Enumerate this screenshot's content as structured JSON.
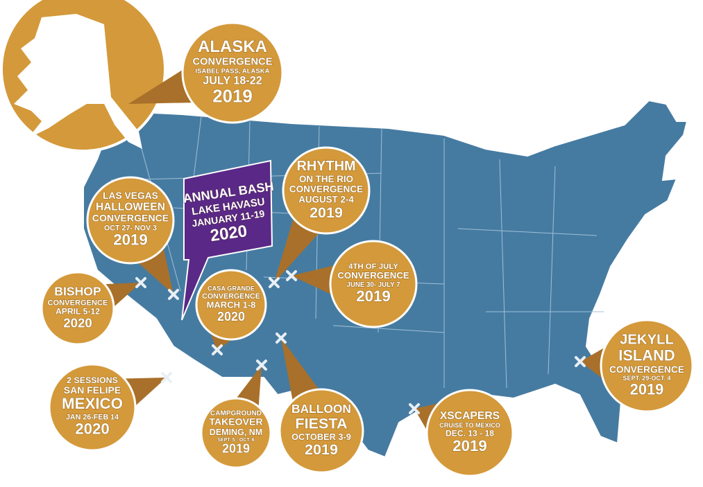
{
  "banner": {
    "lines": [
      "ANNUAL BASH",
      "LAKE HAVASU",
      "JANUARY 11-19",
      "2020"
    ]
  },
  "events": [
    {
      "lines": [
        "ALASKA",
        "CONVERGENCE",
        "ISABEL PASS, ALASKA",
        "JULY 18-22",
        "2019"
      ]
    },
    {
      "lines": [
        "RHYTHM",
        "ON THE RIO",
        "CONVERGENCE",
        "AUGUST 2-4",
        "2019"
      ]
    },
    {
      "lines": [
        "LAS VEGAS",
        "HALLOWEEN",
        "CONVERGENCE",
        "OCT 27- NOV 3",
        "2019"
      ]
    },
    {
      "lines": [
        "4TH OF JULY",
        "CONVERGENCE",
        "JUNE 30- JULY 7",
        "2019"
      ]
    },
    {
      "lines": [
        "BISHOP",
        "CONVERGENCE",
        "APRIL 5-12",
        "2020"
      ]
    },
    {
      "lines": [
        "CASA GRANDE",
        "CONVERGENCE",
        "MARCH 1-8",
        "2020"
      ]
    },
    {
      "lines": [
        "2 SESSIONS",
        "SAN FELIPE",
        "MEXICO",
        "JAN 26-FEB 14",
        "2020"
      ]
    },
    {
      "lines": [
        "CAMPGROUND",
        "TAKEOVER",
        "DEMING, NM",
        "SEPT. 5 - OCT. 6",
        "2019"
      ]
    },
    {
      "lines": [
        "BALLOON",
        "FIESTA",
        "OCTOBER 3-9",
        "2019"
      ]
    },
    {
      "lines": [
        "XSCAPERS",
        "CRUISE TO MEXICO",
        "DEC. 13 - 18",
        "2019"
      ]
    },
    {
      "lines": [
        "JEKYLL",
        "ISLAND",
        "CONVERGENCE",
        "SEPT. 29-OCT. 4",
        "2019"
      ]
    }
  ]
}
